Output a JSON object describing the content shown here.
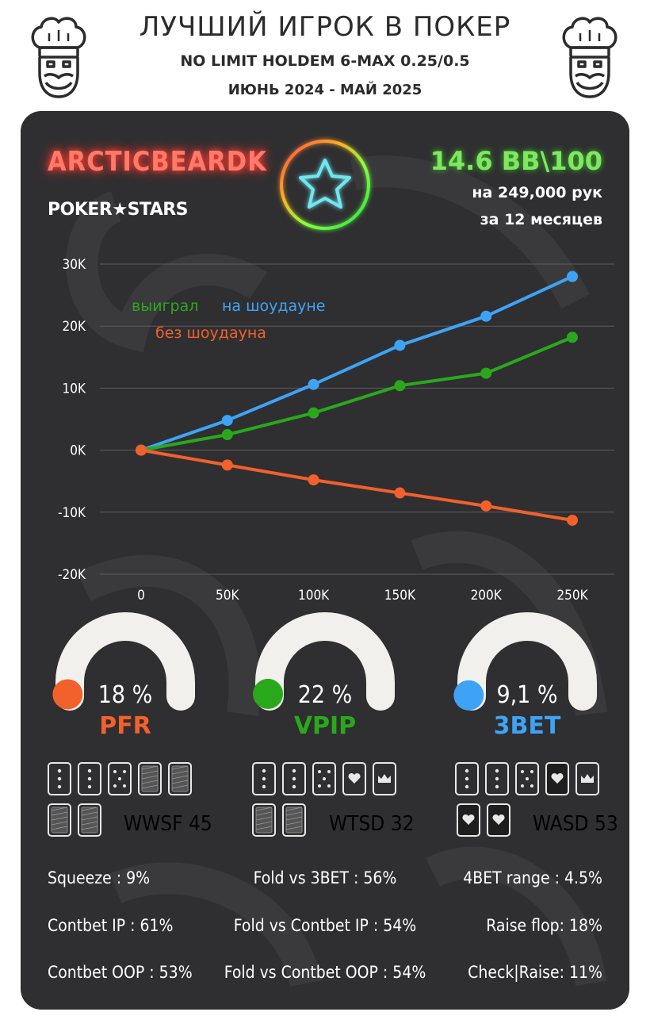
{
  "header": {
    "title": "ЛУЧШИЙ ИГРОК В ПОКЕР",
    "subtitle": "NO LIMIT HOLDEM 6-MAX 0.25/0.5",
    "period": "ИЮНЬ 2024 - МАЙ 2025"
  },
  "player": {
    "name": "ARCTICBEARDK",
    "room": "POKER★STARS",
    "winrate": "14.6 BB\\100",
    "hands": "на 249,000 рук",
    "months": "за  12 месяцев"
  },
  "colors": {
    "blue": "#3fa3f5",
    "green": "#2aa81c",
    "orange": "#f2602b",
    "card_bg": "#2f2f31"
  },
  "chart_data": {
    "type": "line",
    "x": [
      0,
      50000,
      100000,
      150000,
      200000,
      250000
    ],
    "xticks": [
      "0",
      "50K",
      "100K",
      "150K",
      "200K",
      "250K"
    ],
    "yticks": [
      "30K",
      "20K",
      "10K",
      "0K",
      "-10K",
      "-20K"
    ],
    "ylim": [
      -20000,
      30000
    ],
    "grid": true,
    "series": [
      {
        "name": "на шоудауне",
        "color": "#3fa3f5",
        "values": [
          0,
          4800,
          10600,
          16900,
          21600,
          28000
        ]
      },
      {
        "name": "выиграл",
        "color": "#2aa81c",
        "values": [
          0,
          2500,
          6000,
          10400,
          12400,
          18200
        ]
      },
      {
        "name": "без шоудауна",
        "color": "#f2602b",
        "values": [
          0,
          -2400,
          -4800,
          -6900,
          -9000,
          -11300
        ]
      }
    ],
    "legend": {
      "won": "выиграл",
      "showdown": "на шоудауне",
      "no_showdown": "без шоудауна"
    }
  },
  "gauges": [
    {
      "value_text": "18 %",
      "label": "PFR",
      "value": 0.18,
      "color": "#f2602b"
    },
    {
      "value_text": "22 %",
      "label": "VPIP",
      "value": 0.22,
      "color": "#2aa81c"
    },
    {
      "value_text": "9,1 %",
      "label": "3BET",
      "value": 0.091,
      "color": "#3fa3f5"
    }
  ],
  "card_rows": [
    {
      "label": "WWSF 45",
      "color": "#f2602b"
    },
    {
      "label": "WTSD 32",
      "color": "#2aa81c"
    },
    {
      "label": "WASD 53",
      "color": "#3fa3f5"
    }
  ],
  "stats": {
    "left": [
      "Squeeze : 9%",
      "Contbet IP : 61%",
      "Contbet OOP : 53%"
    ],
    "center": [
      "Fold vs 3BET : 56%",
      "Fold vs Contbet IP : 54%",
      "Fold vs Contbet OOP : 54%"
    ],
    "right": [
      "4BET range : 4.5%",
      "Raise flop: 18%",
      "Check|Raise: 11%"
    ]
  }
}
